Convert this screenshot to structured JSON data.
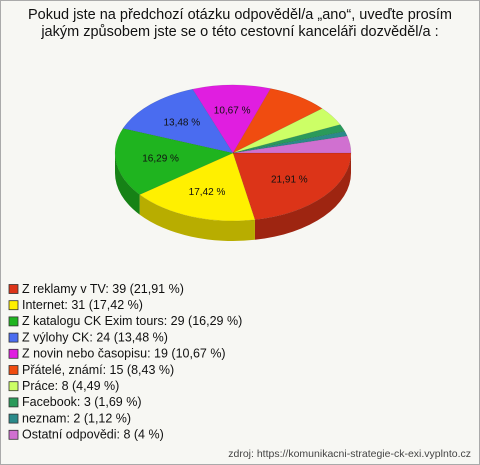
{
  "chart_data": {
    "type": "pie",
    "title": "Pokud jste na předchozí otázku odpověděl/a „ano“, uveďte prosím jakým způsobem jste se o této cestovní kanceláři dozvěděl/a :",
    "categories": [
      "Z reklamy v TV: 39 (21,91 %)",
      "Internet: 31 (17,42 %)",
      "Z katalogu CK Exim tours: 29 (16,29 %)",
      "Z výlohy CK: 24 (13,48 %)",
      "Z novin nebo časopisu: 19 (10,67 %)",
      "Přátelé, známí: 15 (8,43 %)",
      "Práce: 8 (4,49 %)",
      "Facebook: 3 (1,69 %)",
      "neznam: 2 (1,12 %)",
      "Ostatní odpovědi: 8 (4 %)"
    ],
    "values": [
      21.91,
      17.42,
      16.29,
      13.48,
      10.67,
      8.43,
      4.49,
      1.69,
      1.12,
      4
    ],
    "value_labels": [
      "21,91 %",
      "17,42 %",
      "16,29 %",
      "13,48 %",
      "10,67 %",
      null,
      null,
      null,
      null,
      null
    ],
    "colors": [
      "#dc3418",
      "#fff000",
      "#1fb41f",
      "#4a6cf0",
      "#e01ee0",
      "#f04c10",
      "#ccff66",
      "#2a9a5a",
      "#2a8a8a",
      "#d070d0"
    ],
    "source": "zdroj: https://komunikacni-strategie-ck-exi.vyplnto.cz"
  }
}
